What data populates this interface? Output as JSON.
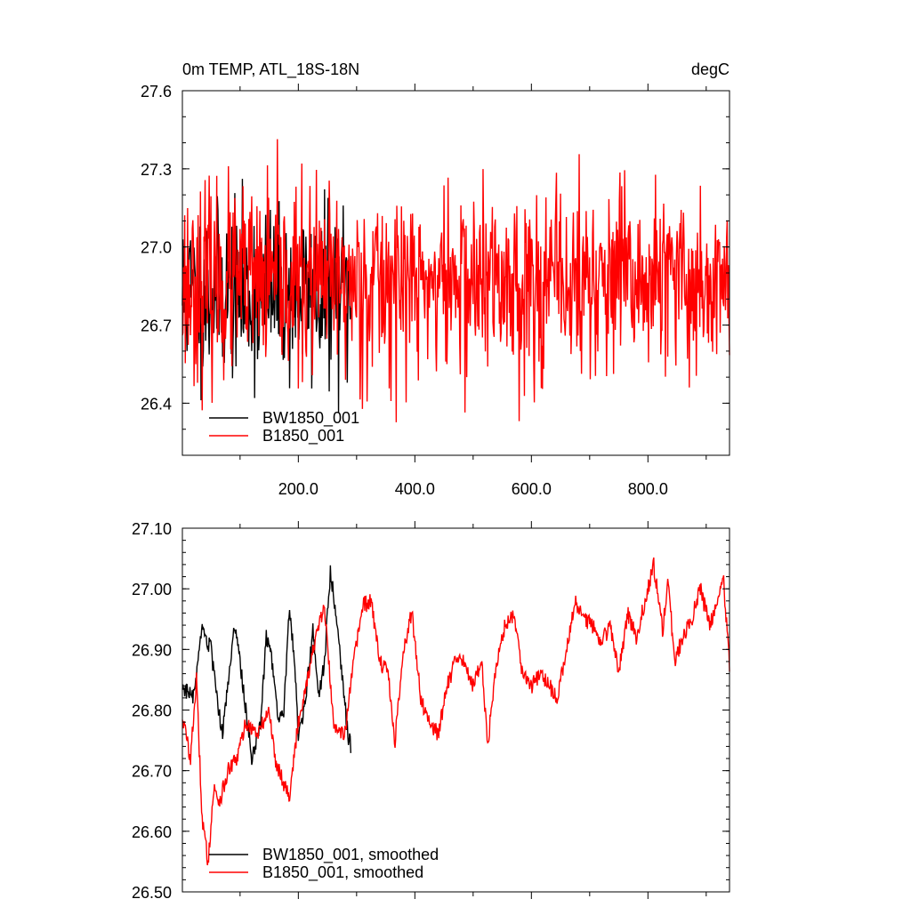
{
  "charts": [
    {
      "title_left": "0m TEMP, ATL_18S-18N",
      "title_right": "degC",
      "type": "line",
      "xlim": [
        1,
        940
      ],
      "ylim": [
        26.2,
        27.6
      ],
      "yticks": [
        26.4,
        26.7,
        27.0,
        27.3,
        27.6
      ],
      "ytick_labels": [
        "26.4",
        "26.7",
        "27.0",
        "27.3",
        "27.6"
      ],
      "xticks": [
        200,
        400,
        600,
        800
      ],
      "xtick_labels": [
        "200.0",
        "400.0",
        "600.0",
        "800.0"
      ],
      "legend": "lower-left",
      "series": [
        {
          "name": "BW1850_001",
          "color": "#000000",
          "n": 290,
          "mean": 26.82,
          "amp": 0.18,
          "seed": 11
        },
        {
          "name": "B1850_001",
          "color": "#ff0000",
          "n": 940,
          "mean": 26.86,
          "amp": 0.2,
          "seed": 23
        }
      ]
    },
    {
      "title_left": "",
      "title_right": "",
      "type": "line",
      "xlim": [
        1,
        940
      ],
      "ylim": [
        26.5,
        27.1
      ],
      "yticks": [
        26.5,
        26.6,
        26.7,
        26.8,
        26.9,
        27.0,
        27.1
      ],
      "ytick_labels": [
        "26.50",
        "26.60",
        "26.70",
        "26.80",
        "26.90",
        "27.00",
        "27.10"
      ],
      "xticks": [
        200,
        400,
        600,
        800
      ],
      "xtick_labels": [],
      "legend": "lower-left",
      "series": [
        {
          "name": "BW1850_001, smoothed",
          "color": "#000000",
          "n": 290,
          "key_points": [
            [
              1,
              26.84
            ],
            [
              20,
              26.82
            ],
            [
              35,
              26.93
            ],
            [
              50,
              26.9
            ],
            [
              60,
              26.82
            ],
            [
              70,
              26.76
            ],
            [
              80,
              26.85
            ],
            [
              90,
              26.94
            ],
            [
              100,
              26.88
            ],
            [
              110,
              26.8
            ],
            [
              120,
              26.72
            ],
            [
              135,
              26.78
            ],
            [
              145,
              26.92
            ],
            [
              155,
              26.88
            ],
            [
              165,
              26.78
            ],
            [
              175,
              26.8
            ],
            [
              185,
              26.97
            ],
            [
              195,
              26.86
            ],
            [
              200,
              26.76
            ],
            [
              210,
              26.8
            ],
            [
              225,
              26.93
            ],
            [
              235,
              26.82
            ],
            [
              245,
              26.88
            ],
            [
              255,
              27.03
            ],
            [
              265,
              26.96
            ],
            [
              275,
              26.86
            ],
            [
              285,
              26.76
            ],
            [
              290,
              26.74
            ]
          ]
        },
        {
          "name": "B1850_001, smoothed",
          "color": "#ff0000",
          "n": 940,
          "key_points": [
            [
              1,
              26.79
            ],
            [
              15,
              26.72
            ],
            [
              25,
              26.85
            ],
            [
              35,
              26.62
            ],
            [
              45,
              26.55
            ],
            [
              55,
              26.67
            ],
            [
              65,
              26.65
            ],
            [
              80,
              26.7
            ],
            [
              95,
              26.72
            ],
            [
              110,
              26.78
            ],
            [
              130,
              26.76
            ],
            [
              150,
              26.8
            ],
            [
              160,
              26.72
            ],
            [
              175,
              26.68
            ],
            [
              185,
              26.66
            ],
            [
              200,
              26.78
            ],
            [
              215,
              26.85
            ],
            [
              230,
              26.92
            ],
            [
              245,
              26.97
            ],
            [
              260,
              26.78
            ],
            [
              280,
              26.76
            ],
            [
              295,
              26.88
            ],
            [
              310,
              26.97
            ],
            [
              325,
              26.98
            ],
            [
              340,
              26.88
            ],
            [
              355,
              26.86
            ],
            [
              365,
              26.74
            ],
            [
              380,
              26.9
            ],
            [
              395,
              26.96
            ],
            [
              410,
              26.82
            ],
            [
              425,
              26.78
            ],
            [
              440,
              26.76
            ],
            [
              455,
              26.84
            ],
            [
              470,
              26.88
            ],
            [
              485,
              26.88
            ],
            [
              500,
              26.84
            ],
            [
              515,
              26.88
            ],
            [
              525,
              26.74
            ],
            [
              540,
              26.88
            ],
            [
              555,
              26.94
            ],
            [
              570,
              26.96
            ],
            [
              585,
              26.86
            ],
            [
              600,
              26.84
            ],
            [
              615,
              26.86
            ],
            [
              630,
              26.84
            ],
            [
              645,
              26.82
            ],
            [
              660,
              26.9
            ],
            [
              675,
              26.98
            ],
            [
              690,
              26.95
            ],
            [
              705,
              26.94
            ],
            [
              720,
              26.91
            ],
            [
              735,
              26.94
            ],
            [
              750,
              26.86
            ],
            [
              765,
              26.96
            ],
            [
              780,
              26.92
            ],
            [
              795,
              26.98
            ],
            [
              810,
              27.04
            ],
            [
              825,
              26.93
            ],
            [
              835,
              27.02
            ],
            [
              845,
              26.88
            ],
            [
              860,
              26.92
            ],
            [
              875,
              26.95
            ],
            [
              890,
              27.0
            ],
            [
              905,
              26.94
            ],
            [
              920,
              26.98
            ],
            [
              930,
              27.01
            ],
            [
              940,
              26.87
            ]
          ]
        }
      ]
    }
  ],
  "chart_data": [
    {
      "type": "line",
      "title": "0m TEMP, ATL_18S-18N",
      "units": "degC",
      "xlabel": "",
      "ylabel": "",
      "xlim": [
        1,
        940
      ],
      "ylim": [
        26.2,
        27.6
      ],
      "series": [
        {
          "name": "BW1850_001",
          "x_range": [
            1,
            290
          ],
          "approx_mean": 26.82,
          "approx_range": [
            26.3,
            27.4
          ]
        },
        {
          "name": "B1850_001",
          "x_range": [
            1,
            940
          ],
          "approx_mean": 26.86,
          "approx_range": [
            26.3,
            27.55
          ]
        }
      ]
    },
    {
      "type": "line",
      "title": "",
      "xlabel": "",
      "ylabel": "",
      "xlim": [
        1,
        940
      ],
      "ylim": [
        26.5,
        27.1
      ],
      "series": [
        {
          "name": "BW1850_001, smoothed",
          "x_range": [
            1,
            290
          ],
          "approx_range": [
            26.7,
            27.03
          ]
        },
        {
          "name": "B1850_001, smoothed",
          "x_range": [
            1,
            940
          ],
          "approx_range": [
            26.54,
            27.06
          ]
        }
      ]
    }
  ]
}
